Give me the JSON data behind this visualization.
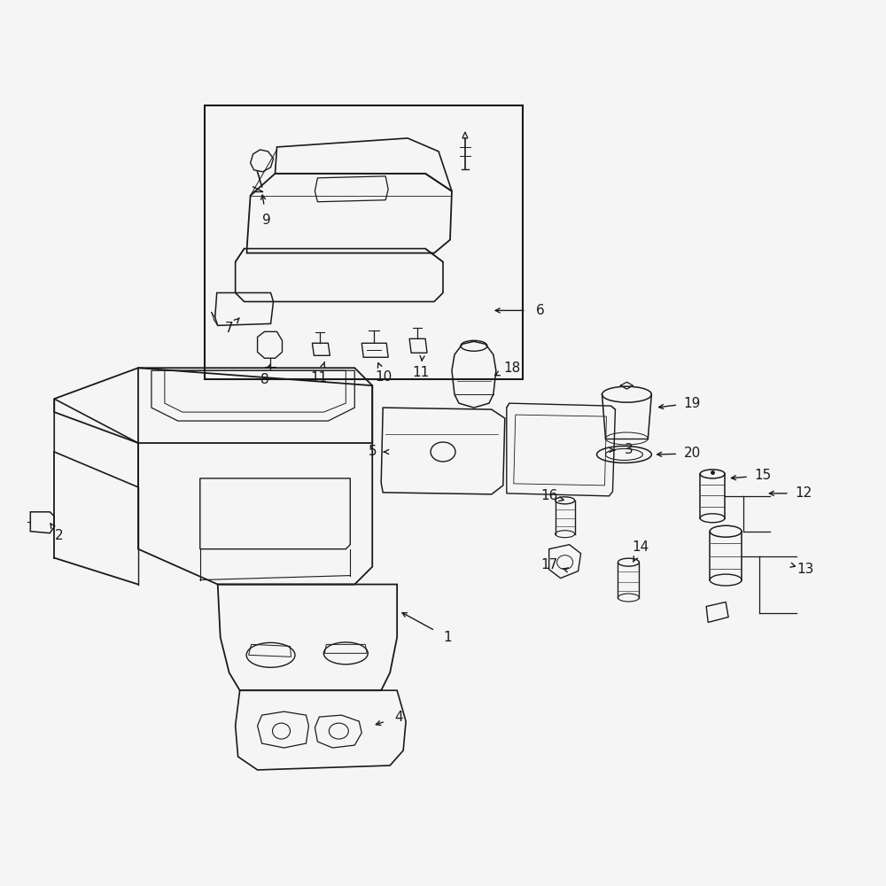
{
  "background_color": "#f5f5f5",
  "line_color": "#1a1a1a",
  "fig_width": 10,
  "fig_height": 10,
  "dpi": 100,
  "label_fontsize": 11
}
